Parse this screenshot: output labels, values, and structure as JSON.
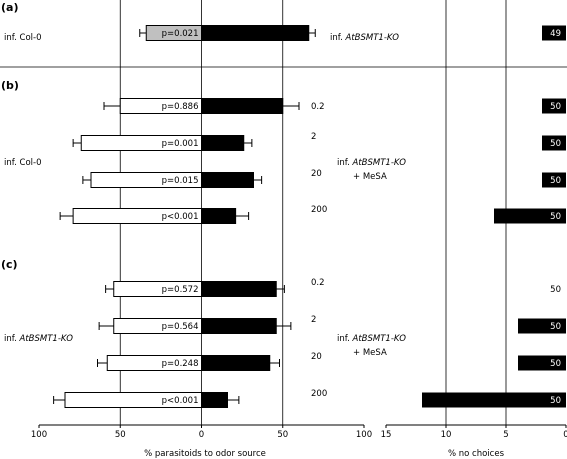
{
  "chart_data": [
    {
      "type": "bar",
      "panel": "(a)",
      "left_label": "inf. Col-0",
      "right_label_prefix": "inf. ",
      "right_label_italic": "AtBSMT1-KO",
      "right_label_suffix": "",
      "left_color": "#c0c0c0",
      "rows": [
        {
          "dose": "",
          "left": 34,
          "left_err": 4,
          "right": 66,
          "right_err": 4,
          "p": "p=0.021",
          "no_choice": 2,
          "n": "49"
        }
      ]
    },
    {
      "type": "bar",
      "panel": "(b)",
      "left_label": "inf. Col-0",
      "right_label_prefix": "inf. ",
      "right_label_italic": "AtBSMT1-KO",
      "right_label_suffix": "+ MeSA",
      "left_color": "#ffffff",
      "rows": [
        {
          "dose": "0.2",
          "left": 50,
          "left_err": 10,
          "right": 50,
          "right_err": 10,
          "p": "p=0.886",
          "no_choice": 2,
          "n": "50"
        },
        {
          "dose": "2",
          "left": 74,
          "left_err": 5,
          "right": 26,
          "right_err": 5,
          "p": "p=0.001",
          "no_choice": 2,
          "n": "50"
        },
        {
          "dose": "20",
          "left": 68,
          "left_err": 5,
          "right": 32,
          "right_err": 5,
          "p": "p=0.015",
          "no_choice": 2,
          "n": "50"
        },
        {
          "dose": "200",
          "left": 79,
          "left_err": 8,
          "right": 21,
          "right_err": 8,
          "p": "p<0.001",
          "no_choice": 6,
          "n": "50"
        }
      ]
    },
    {
      "type": "bar",
      "panel": "(c)",
      "left_label_prefix": "inf. ",
      "left_label_italic": "AtBSMT1-KO",
      "right_label_prefix": "inf. ",
      "right_label_italic": "AtBSMT1-KO",
      "right_label_suffix": "+ MeSA",
      "left_color": "#ffffff",
      "rows": [
        {
          "dose": "0.2",
          "left": 54,
          "left_err": 5,
          "right": 46,
          "right_err": 5,
          "p": "p=0.572",
          "no_choice": 0,
          "n": "50"
        },
        {
          "dose": "2",
          "left": 54,
          "left_err": 9,
          "right": 46,
          "right_err": 9,
          "p": "p=0.564",
          "no_choice": 4,
          "n": "50"
        },
        {
          "dose": "20",
          "left": 58,
          "left_err": 6,
          "right": 42,
          "right_err": 6,
          "p": "p=0.248",
          "no_choice": 4,
          "n": "50"
        },
        {
          "dose": "200",
          "left": 84,
          "left_err": 7,
          "right": 16,
          "right_err": 7,
          "p": "p<0.001",
          "no_choice": 12,
          "n": "50"
        }
      ]
    }
  ],
  "axes": {
    "left_xlabel": "% parasitoids to odor source",
    "left_ticks": [
      "100",
      "50",
      "0",
      "50",
      "100"
    ],
    "left_xlim": [
      -100,
      100
    ],
    "right_xlabel": "% no choices",
    "right_ticks": [
      "15",
      "10",
      "5",
      "0"
    ],
    "right_xlim": [
      15,
      0
    ],
    "gridlines_left": [
      -50,
      0,
      50
    ],
    "gridlines_right": [
      10,
      5
    ]
  },
  "colors": {
    "right_bar": "#000000",
    "no_choice_bar": "#000000"
  }
}
